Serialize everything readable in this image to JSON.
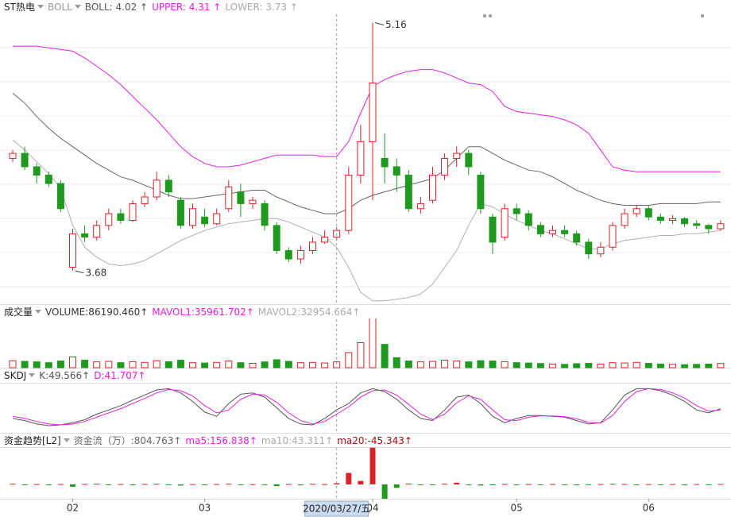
{
  "chart_data": {
    "type": "candlestick",
    "title": "ST热电",
    "header": [
      {
        "text": "BOLL",
        "color": "#999999",
        "menu": true
      },
      {
        "text": "BOLL: 4.02 ↑",
        "color": "#555555"
      },
      {
        "text": "UPPER: 4.31 ↑",
        "color": "#e020e0"
      },
      {
        "text": "LOWER: 3.73 ↑",
        "color": "#aaaaaa"
      }
    ],
    "up_color": "#d9232a",
    "down_color": "#1f9a1f",
    "ylim": [
      3.48,
      5.21
    ],
    "open": [
      4.35,
      4.38,
      4.3,
      4.25,
      4.2,
      3.7,
      3.9,
      3.88,
      3.95,
      4.02,
      3.98,
      4.08,
      4.12,
      4.22,
      4.1,
      3.95,
      4.0,
      3.96,
      4.05,
      4.15,
      4.08,
      4.08,
      3.95,
      3.8,
      3.75,
      3.8,
      3.85,
      3.88,
      3.92,
      4.25,
      4.45,
      4.35,
      4.3,
      4.25,
      4.05,
      4.1,
      4.25,
      4.35,
      4.38,
      4.25,
      4.0,
      3.88,
      4.05,
      4.02,
      3.95,
      3.9,
      3.92,
      3.9,
      3.85,
      3.78,
      3.82,
      3.95,
      4.02,
      4.05,
      4.0,
      3.98,
      3.99,
      3.96,
      3.95,
      3.93
    ],
    "high": [
      4.4,
      4.42,
      4.32,
      4.27,
      4.22,
      3.93,
      3.95,
      3.98,
      4.05,
      4.05,
      4.1,
      4.15,
      4.27,
      4.25,
      4.12,
      4.08,
      4.05,
      4.05,
      4.22,
      4.2,
      4.12,
      4.1,
      3.97,
      3.82,
      3.83,
      3.88,
      3.92,
      3.94,
      4.3,
      4.55,
      5.16,
      4.5,
      4.35,
      4.28,
      4.12,
      4.3,
      4.38,
      4.42,
      4.4,
      4.27,
      4.02,
      4.08,
      4.08,
      4.04,
      3.97,
      3.95,
      3.95,
      3.92,
      3.87,
      3.85,
      3.97,
      4.05,
      4.07,
      4.07,
      4.02,
      4.01,
      4.0,
      3.98,
      3.96,
      3.98
    ],
    "low": [
      4.33,
      4.28,
      4.2,
      4.18,
      4.03,
      3.68,
      3.85,
      3.86,
      3.92,
      3.96,
      3.97,
      4.06,
      4.1,
      4.12,
      3.93,
      3.93,
      3.94,
      3.95,
      4.03,
      4.0,
      4.05,
      3.92,
      3.78,
      3.73,
      3.72,
      3.78,
      3.84,
      3.86,
      3.9,
      4.2,
      4.1,
      4.2,
      4.15,
      4.03,
      4.02,
      4.08,
      4.22,
      4.3,
      4.25,
      4.02,
      3.78,
      3.86,
      3.98,
      3.92,
      3.88,
      3.88,
      3.88,
      3.83,
      3.75,
      3.76,
      3.8,
      3.93,
      4.0,
      3.98,
      3.96,
      3.96,
      3.94,
      3.93,
      3.9,
      3.92
    ],
    "close": [
      4.38,
      4.3,
      4.25,
      4.2,
      4.05,
      3.9,
      3.88,
      3.95,
      4.02,
      3.98,
      4.08,
      4.12,
      4.22,
      4.15,
      3.95,
      4.05,
      3.96,
      4.02,
      4.18,
      4.08,
      4.1,
      3.95,
      3.8,
      3.75,
      3.8,
      3.85,
      3.88,
      3.92,
      4.25,
      4.45,
      4.8,
      4.3,
      4.25,
      4.05,
      4.08,
      4.25,
      4.35,
      4.38,
      4.3,
      4.05,
      3.85,
      4.05,
      4.02,
      3.95,
      3.9,
      3.92,
      3.9,
      3.85,
      3.78,
      3.82,
      3.95,
      4.02,
      4.05,
      4.0,
      3.98,
      3.99,
      3.96,
      3.95,
      3.93,
      3.96
    ],
    "bands": [
      {
        "name": "UPPER",
        "color": "#e020e0",
        "values": [
          5.02,
          5.02,
          5.02,
          5.01,
          5.0,
          4.99,
          4.95,
          4.9,
          4.85,
          4.79,
          4.72,
          4.65,
          4.58,
          4.5,
          4.42,
          4.36,
          4.32,
          4.3,
          4.3,
          4.31,
          4.33,
          4.35,
          4.37,
          4.37,
          4.37,
          4.37,
          4.36,
          4.36,
          4.45,
          4.62,
          4.78,
          4.82,
          4.85,
          4.87,
          4.88,
          4.88,
          4.86,
          4.83,
          4.8,
          4.79,
          4.75,
          4.66,
          4.63,
          4.62,
          4.61,
          4.6,
          4.58,
          4.55,
          4.5,
          4.4,
          4.3,
          4.28,
          4.27,
          4.27,
          4.27,
          4.27,
          4.27,
          4.27,
          4.27,
          4.27
        ]
      },
      {
        "name": "BOLL",
        "color": "#666666",
        "values": [
          4.74,
          4.68,
          4.6,
          4.53,
          4.47,
          4.42,
          4.37,
          4.32,
          4.28,
          4.24,
          4.22,
          4.19,
          4.16,
          4.13,
          4.11,
          4.11,
          4.12,
          4.13,
          4.14,
          4.15,
          4.16,
          4.16,
          4.12,
          4.09,
          4.06,
          4.04,
          4.02,
          4.02,
          4.05,
          4.1,
          4.13,
          4.15,
          4.17,
          4.19,
          4.21,
          4.23,
          4.28,
          4.35,
          4.42,
          4.42,
          4.38,
          4.34,
          4.31,
          4.28,
          4.27,
          4.24,
          4.2,
          4.16,
          4.13,
          4.1,
          4.08,
          4.07,
          4.07,
          4.07,
          4.08,
          4.08,
          4.08,
          4.08,
          4.09,
          4.09
        ]
      },
      {
        "name": "LOWER",
        "color": "#b0b0b0",
        "values": [
          4.46,
          4.4,
          4.33,
          4.26,
          4.17,
          3.95,
          3.82,
          3.76,
          3.72,
          3.71,
          3.72,
          3.74,
          3.78,
          3.82,
          3.86,
          3.89,
          3.92,
          3.94,
          3.96,
          3.97,
          3.98,
          3.99,
          3.99,
          3.97,
          3.94,
          3.91,
          3.88,
          3.82,
          3.7,
          3.55,
          3.5,
          3.5,
          3.51,
          3.52,
          3.54,
          3.6,
          3.7,
          3.8,
          3.95,
          4.08,
          4.06,
          4.02,
          3.98,
          3.95,
          3.92,
          3.9,
          3.87,
          3.84,
          3.81,
          3.81,
          3.84,
          3.86,
          3.87,
          3.88,
          3.89,
          3.89,
          3.9,
          3.9,
          3.91,
          3.92
        ]
      }
    ],
    "volume": {
      "title": "成交量",
      "header": [
        {
          "text": "VOLUME:86190.460↑",
          "color": "#333333"
        },
        {
          "text": "MAVOL1:35961.702↑",
          "color": "#e020e0"
        },
        {
          "text": "MAVOL2:32954.664↑",
          "color": "#aaaaaa"
        }
      ],
      "ylim": [
        0,
        300000
      ],
      "values": [
        42000,
        38000,
        35000,
        30000,
        40000,
        65000,
        45000,
        35000,
        38000,
        30000,
        36000,
        32000,
        42000,
        36000,
        45000,
        30000,
        28000,
        32000,
        40000,
        30000,
        26000,
        35000,
        48000,
        38000,
        30000,
        32000,
        28000,
        35000,
        90000,
        150000,
        300000,
        140000,
        60000,
        40000,
        35000,
        38000,
        45000,
        40000,
        35000,
        42000,
        40000,
        36000,
        30000,
        28000,
        25000,
        22000,
        20000,
        24000,
        26000,
        22000,
        30000,
        28000,
        32000,
        26000,
        22000,
        20000,
        18000,
        20000,
        22000,
        25000
      ]
    },
    "kdj": {
      "title": "SKDJ",
      "header": [
        {
          "text": "K:49.566↑",
          "color": "#555555"
        },
        {
          "text": "D:41.707↑",
          "color": "#e020e0"
        }
      ],
      "ylim": [
        -5,
        105
      ],
      "series": [
        {
          "name": "K",
          "color": "#555555",
          "values": [
            25,
            20,
            12,
            8,
            10,
            15,
            22,
            35,
            45,
            55,
            68,
            80,
            92,
            95,
            85,
            65,
            40,
            30,
            60,
            82,
            85,
            75,
            50,
            25,
            12,
            10,
            25,
            45,
            60,
            85,
            95,
            88,
            70,
            45,
            25,
            20,
            45,
            75,
            80,
            60,
            30,
            15,
            25,
            32,
            32,
            30,
            28,
            20,
            12,
            15,
            45,
            80,
            95,
            95,
            90,
            80,
            65,
            45,
            38,
            48
          ]
        },
        {
          "name": "D",
          "color": "#e020e0",
          "values": [
            30,
            25,
            18,
            12,
            10,
            12,
            18,
            28,
            38,
            48,
            60,
            72,
            85,
            93,
            90,
            78,
            55,
            38,
            45,
            70,
            82,
            80,
            63,
            38,
            20,
            12,
            18,
            35,
            52,
            75,
            90,
            92,
            80,
            58,
            35,
            22,
            35,
            62,
            78,
            70,
            45,
            22,
            20,
            28,
            31,
            31,
            29,
            24,
            16,
            14,
            32,
            65,
            88,
            95,
            93,
            85,
            73,
            55,
            42,
            45
          ]
        }
      ]
    },
    "fund": {
      "title": "资金趋势[L2]",
      "header": [
        {
          "text": "资金流（万）:804.763↑",
          "color": "#666666"
        },
        {
          "text": "ma5:156.838↑",
          "color": "#e020e0"
        },
        {
          "text": "ma10:43.311↑",
          "color": "#aaaaaa"
        },
        {
          "text": "ma20:-45.343↑",
          "color": "#a01010"
        }
      ],
      "ylim": [
        -250,
        650
      ],
      "values": [
        10,
        -8,
        5,
        -12,
        6,
        -40,
        8,
        12,
        -10,
        6,
        -15,
        8,
        10,
        -6,
        -20,
        5,
        -8,
        6,
        10,
        -5,
        4,
        -12,
        -30,
        8,
        -6,
        10,
        5,
        20,
        200,
        60,
        640,
        -250,
        -60,
        15,
        -10,
        -8,
        10,
        30,
        -12,
        -20,
        -15,
        8,
        -6,
        5,
        -4,
        6,
        -5,
        -8,
        -10,
        6,
        10,
        8,
        -5,
        4,
        -6,
        5,
        -4,
        6,
        -5,
        8
      ]
    },
    "x_labels": [
      {
        "label": "02",
        "index": 5
      },
      {
        "label": "03",
        "index": 16
      },
      {
        "label": "04",
        "index": 30
      },
      {
        "label": "05",
        "index": 42
      },
      {
        "label": "06",
        "index": 53
      }
    ],
    "crosshair": {
      "label": "2020/03/27/五",
      "index": 27
    }
  }
}
